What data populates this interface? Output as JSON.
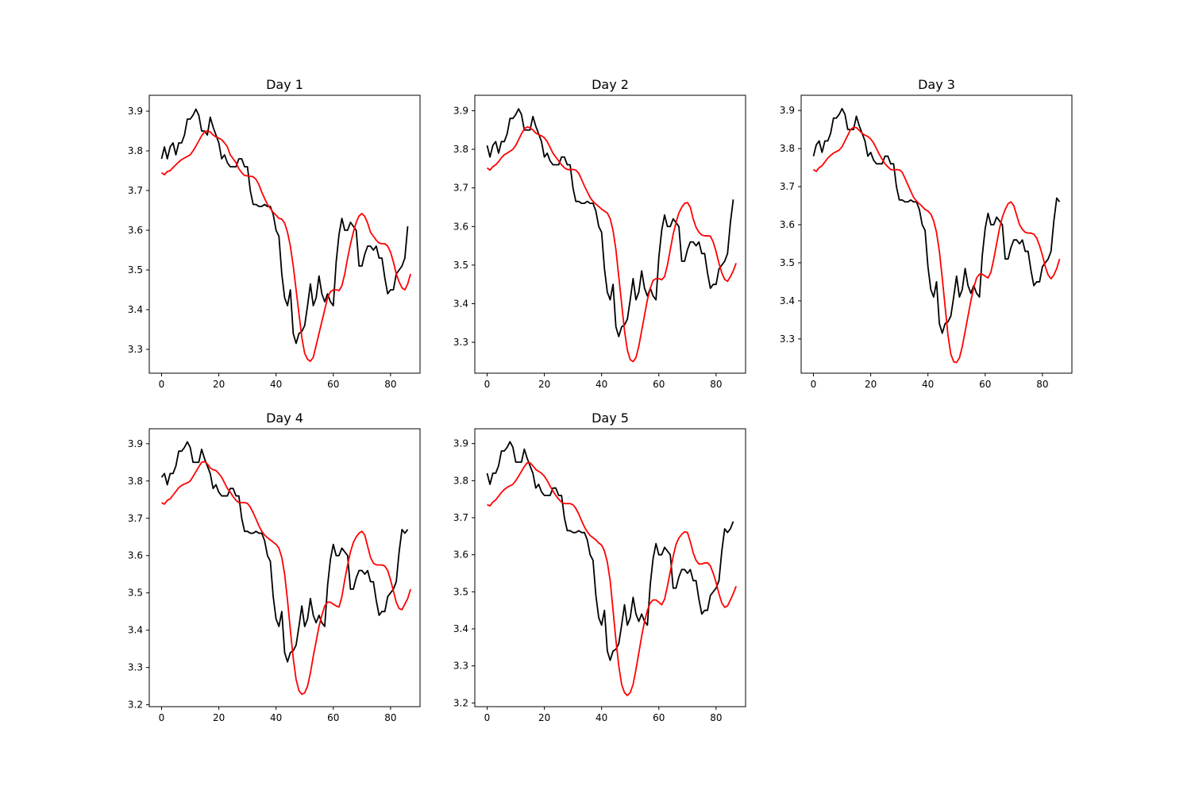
{
  "chart_data": [
    {
      "type": "line",
      "title": "Day 1",
      "xticks": [
        0,
        20,
        40,
        60,
        80
      ],
      "yticks": [
        3.3,
        3.4,
        3.5,
        3.6,
        3.7,
        3.8,
        3.9
      ],
      "xlim": [
        -4.3,
        90.3
      ],
      "ylim": [
        3.24,
        3.94
      ],
      "series": [
        {
          "color": "#000000",
          "values": [
            3.78,
            3.81,
            3.78,
            3.81,
            3.82,
            3.79,
            3.82,
            3.82,
            3.84,
            3.88,
            3.88,
            3.89,
            3.905,
            3.89,
            3.85,
            3.85,
            3.84,
            3.885,
            3.86,
            3.84,
            3.82,
            3.78,
            3.79,
            3.77,
            3.76,
            3.76,
            3.76,
            3.78,
            3.78,
            3.76,
            3.76,
            3.7,
            3.665,
            3.665,
            3.66,
            3.66,
            3.665,
            3.66,
            3.66,
            3.64,
            3.6,
            3.585,
            3.49,
            3.43,
            3.41,
            3.45,
            3.34,
            3.315,
            3.34,
            3.345,
            3.36,
            3.41,
            3.465,
            3.41,
            3.43,
            3.485,
            3.44,
            3.42,
            3.44,
            3.42,
            3.41,
            3.52,
            3.59,
            3.63,
            3.6,
            3.6,
            3.62,
            3.61,
            3.6,
            3.51,
            3.51,
            3.54,
            3.56,
            3.56,
            3.55,
            3.56,
            3.53,
            3.53,
            3.48,
            3.44,
            3.45,
            3.45,
            3.49,
            3.5,
            3.51,
            3.53,
            3.61
          ]
        },
        {
          "color": "#ff0000",
          "values": [
            3.745,
            3.74,
            3.748,
            3.75,
            3.758,
            3.765,
            3.772,
            3.778,
            3.782,
            3.786,
            3.79,
            3.8,
            3.812,
            3.825,
            3.838,
            3.848,
            3.85,
            3.848,
            3.84,
            3.835,
            3.832,
            3.828,
            3.82,
            3.81,
            3.79,
            3.78,
            3.77,
            3.755,
            3.745,
            3.738,
            3.737,
            3.736,
            3.735,
            3.728,
            3.715,
            3.696,
            3.68,
            3.665,
            3.655,
            3.645,
            3.638,
            3.63,
            3.628,
            3.618,
            3.595,
            3.56,
            3.51,
            3.45,
            3.39,
            3.33,
            3.29,
            3.275,
            3.27,
            3.28,
            3.31,
            3.34,
            3.37,
            3.4,
            3.43,
            3.445,
            3.45,
            3.45,
            3.448,
            3.46,
            3.49,
            3.53,
            3.565,
            3.595,
            3.62,
            3.636,
            3.642,
            3.635,
            3.618,
            3.595,
            3.585,
            3.575,
            3.568,
            3.566,
            3.566,
            3.56,
            3.545,
            3.52,
            3.49,
            3.47,
            3.455,
            3.45,
            3.465,
            3.49
          ]
        }
      ]
    },
    {
      "type": "line",
      "title": "Day 2",
      "xticks": [
        0,
        20,
        40,
        60,
        80
      ],
      "yticks": [
        3.3,
        3.4,
        3.5,
        3.6,
        3.7,
        3.8,
        3.9
      ],
      "xlim": [
        -4.3,
        90.3
      ],
      "ylim": [
        3.22,
        3.94
      ],
      "series": [
        {
          "color": "#000000",
          "values": [
            3.81,
            3.78,
            3.81,
            3.82,
            3.79,
            3.82,
            3.82,
            3.84,
            3.88,
            3.88,
            3.89,
            3.905,
            3.89,
            3.85,
            3.85,
            3.85,
            3.885,
            3.86,
            3.84,
            3.82,
            3.78,
            3.79,
            3.77,
            3.76,
            3.76,
            3.76,
            3.78,
            3.78,
            3.76,
            3.76,
            3.7,
            3.665,
            3.665,
            3.66,
            3.66,
            3.665,
            3.66,
            3.66,
            3.64,
            3.6,
            3.585,
            3.49,
            3.43,
            3.41,
            3.45,
            3.34,
            3.315,
            3.34,
            3.345,
            3.36,
            3.41,
            3.465,
            3.41,
            3.43,
            3.485,
            3.44,
            3.42,
            3.44,
            3.42,
            3.41,
            3.52,
            3.59,
            3.63,
            3.6,
            3.6,
            3.62,
            3.61,
            3.6,
            3.51,
            3.51,
            3.54,
            3.56,
            3.56,
            3.55,
            3.56,
            3.53,
            3.53,
            3.48,
            3.44,
            3.45,
            3.45,
            3.49,
            3.5,
            3.51,
            3.53,
            3.61,
            3.67
          ]
        },
        {
          "color": "#ff0000",
          "values": [
            3.752,
            3.746,
            3.755,
            3.76,
            3.768,
            3.778,
            3.786,
            3.79,
            3.795,
            3.8,
            3.81,
            3.825,
            3.84,
            3.853,
            3.858,
            3.856,
            3.85,
            3.842,
            3.838,
            3.835,
            3.83,
            3.82,
            3.805,
            3.79,
            3.78,
            3.77,
            3.76,
            3.752,
            3.748,
            3.747,
            3.748,
            3.746,
            3.738,
            3.722,
            3.705,
            3.69,
            3.675,
            3.665,
            3.658,
            3.652,
            3.645,
            3.64,
            3.635,
            3.62,
            3.59,
            3.54,
            3.47,
            3.4,
            3.33,
            3.28,
            3.255,
            3.25,
            3.26,
            3.29,
            3.33,
            3.37,
            3.41,
            3.44,
            3.46,
            3.465,
            3.465,
            3.462,
            3.47,
            3.5,
            3.54,
            3.58,
            3.61,
            3.635,
            3.65,
            3.66,
            3.662,
            3.65,
            3.62,
            3.598,
            3.585,
            3.578,
            3.576,
            3.576,
            3.575,
            3.56,
            3.535,
            3.505,
            3.48,
            3.463,
            3.458,
            3.47,
            3.485,
            3.505
          ]
        }
      ]
    },
    {
      "type": "line",
      "title": "Day 3",
      "xticks": [
        0,
        20,
        40,
        60,
        80
      ],
      "yticks": [
        3.3,
        3.4,
        3.5,
        3.6,
        3.7,
        3.8,
        3.9
      ],
      "xlim": [
        -4.3,
        90.3
      ],
      "ylim": [
        3.21,
        3.94
      ],
      "series": [
        {
          "color": "#000000",
          "values": [
            3.78,
            3.81,
            3.82,
            3.79,
            3.82,
            3.82,
            3.84,
            3.88,
            3.88,
            3.89,
            3.905,
            3.89,
            3.85,
            3.85,
            3.85,
            3.885,
            3.86,
            3.84,
            3.82,
            3.78,
            3.79,
            3.77,
            3.76,
            3.76,
            3.76,
            3.78,
            3.78,
            3.76,
            3.76,
            3.7,
            3.665,
            3.665,
            3.66,
            3.66,
            3.665,
            3.66,
            3.66,
            3.64,
            3.6,
            3.585,
            3.49,
            3.43,
            3.41,
            3.45,
            3.34,
            3.315,
            3.34,
            3.345,
            3.36,
            3.41,
            3.465,
            3.41,
            3.43,
            3.485,
            3.44,
            3.42,
            3.44,
            3.42,
            3.41,
            3.52,
            3.59,
            3.63,
            3.6,
            3.6,
            3.62,
            3.61,
            3.6,
            3.51,
            3.51,
            3.54,
            3.56,
            3.56,
            3.55,
            3.56,
            3.53,
            3.53,
            3.48,
            3.44,
            3.45,
            3.45,
            3.49,
            3.5,
            3.51,
            3.53,
            3.61,
            3.67,
            3.66
          ]
        },
        {
          "color": "#ff0000",
          "values": [
            3.745,
            3.74,
            3.75,
            3.755,
            3.765,
            3.775,
            3.782,
            3.788,
            3.792,
            3.796,
            3.805,
            3.82,
            3.835,
            3.85,
            3.856,
            3.855,
            3.848,
            3.84,
            3.835,
            3.832,
            3.825,
            3.815,
            3.8,
            3.785,
            3.772,
            3.76,
            3.752,
            3.745,
            3.744,
            3.745,
            3.744,
            3.738,
            3.722,
            3.705,
            3.688,
            3.672,
            3.662,
            3.655,
            3.648,
            3.64,
            3.636,
            3.628,
            3.61,
            3.58,
            3.53,
            3.46,
            3.385,
            3.31,
            3.26,
            3.24,
            3.238,
            3.25,
            3.28,
            3.32,
            3.36,
            3.4,
            3.435,
            3.46,
            3.47,
            3.47,
            3.465,
            3.46,
            3.475,
            3.51,
            3.55,
            3.59,
            3.62,
            3.64,
            3.655,
            3.66,
            3.65,
            3.625,
            3.6,
            3.588,
            3.58,
            3.578,
            3.578,
            3.575,
            3.565,
            3.545,
            3.52,
            3.49,
            3.468,
            3.458,
            3.468,
            3.485,
            3.51
          ]
        }
      ]
    },
    {
      "type": "line",
      "title": "Day 4",
      "xticks": [
        0,
        20,
        40,
        60,
        80
      ],
      "yticks": [
        3.2,
        3.3,
        3.4,
        3.5,
        3.6,
        3.7,
        3.8,
        3.9
      ],
      "xlim": [
        -4.3,
        90.3
      ],
      "ylim": [
        3.195,
        3.94
      ],
      "series": [
        {
          "color": "#000000",
          "values": [
            3.81,
            3.82,
            3.79,
            3.82,
            3.82,
            3.84,
            3.88,
            3.88,
            3.89,
            3.905,
            3.89,
            3.85,
            3.85,
            3.85,
            3.885,
            3.86,
            3.84,
            3.82,
            3.78,
            3.79,
            3.77,
            3.76,
            3.76,
            3.76,
            3.78,
            3.78,
            3.76,
            3.76,
            3.7,
            3.665,
            3.665,
            3.66,
            3.66,
            3.665,
            3.66,
            3.66,
            3.64,
            3.6,
            3.585,
            3.49,
            3.43,
            3.41,
            3.45,
            3.34,
            3.315,
            3.34,
            3.345,
            3.36,
            3.41,
            3.465,
            3.41,
            3.43,
            3.485,
            3.44,
            3.42,
            3.44,
            3.42,
            3.41,
            3.52,
            3.59,
            3.63,
            3.6,
            3.6,
            3.62,
            3.61,
            3.6,
            3.51,
            3.51,
            3.54,
            3.56,
            3.56,
            3.55,
            3.56,
            3.53,
            3.53,
            3.48,
            3.44,
            3.45,
            3.45,
            3.49,
            3.5,
            3.51,
            3.53,
            3.61,
            3.67,
            3.66,
            3.67
          ]
        },
        {
          "color": "#ff0000",
          "values": [
            3.742,
            3.738,
            3.748,
            3.752,
            3.762,
            3.772,
            3.782,
            3.788,
            3.792,
            3.795,
            3.8,
            3.812,
            3.825,
            3.838,
            3.85,
            3.852,
            3.846,
            3.835,
            3.83,
            3.828,
            3.82,
            3.81,
            3.795,
            3.78,
            3.77,
            3.758,
            3.748,
            3.742,
            3.742,
            3.742,
            3.74,
            3.73,
            3.715,
            3.698,
            3.68,
            3.665,
            3.655,
            3.648,
            3.642,
            3.636,
            3.63,
            3.62,
            3.595,
            3.55,
            3.48,
            3.4,
            3.325,
            3.268,
            3.238,
            3.228,
            3.232,
            3.25,
            3.285,
            3.33,
            3.37,
            3.41,
            3.44,
            3.465,
            3.475,
            3.475,
            3.47,
            3.465,
            3.462,
            3.49,
            3.535,
            3.575,
            3.61,
            3.635,
            3.65,
            3.66,
            3.665,
            3.655,
            3.625,
            3.595,
            3.58,
            3.575,
            3.575,
            3.575,
            3.572,
            3.56,
            3.535,
            3.505,
            3.475,
            3.458,
            3.455,
            3.47,
            3.485,
            3.51
          ]
        }
      ]
    },
    {
      "type": "line",
      "title": "Day 5",
      "xticks": [
        0,
        20,
        40,
        60,
        80
      ],
      "yticks": [
        3.2,
        3.3,
        3.4,
        3.5,
        3.6,
        3.7,
        3.8,
        3.9
      ],
      "xlim": [
        -4.3,
        90.3
      ],
      "ylim": [
        3.19,
        3.94
      ],
      "series": [
        {
          "color": "#000000",
          "values": [
            3.82,
            3.79,
            3.82,
            3.82,
            3.84,
            3.88,
            3.88,
            3.89,
            3.905,
            3.89,
            3.85,
            3.85,
            3.85,
            3.885,
            3.86,
            3.84,
            3.82,
            3.78,
            3.79,
            3.77,
            3.76,
            3.76,
            3.76,
            3.78,
            3.78,
            3.76,
            3.76,
            3.7,
            3.665,
            3.665,
            3.66,
            3.66,
            3.665,
            3.66,
            3.66,
            3.64,
            3.6,
            3.585,
            3.49,
            3.43,
            3.41,
            3.45,
            3.34,
            3.315,
            3.34,
            3.345,
            3.36,
            3.41,
            3.465,
            3.41,
            3.43,
            3.485,
            3.44,
            3.42,
            3.44,
            3.42,
            3.41,
            3.52,
            3.59,
            3.63,
            3.6,
            3.6,
            3.62,
            3.61,
            3.6,
            3.51,
            3.51,
            3.54,
            3.56,
            3.56,
            3.55,
            3.56,
            3.53,
            3.53,
            3.48,
            3.44,
            3.45,
            3.45,
            3.49,
            3.5,
            3.51,
            3.53,
            3.61,
            3.67,
            3.66,
            3.67,
            3.69
          ]
        },
        {
          "color": "#ff0000",
          "values": [
            3.735,
            3.732,
            3.742,
            3.748,
            3.758,
            3.768,
            3.776,
            3.782,
            3.786,
            3.79,
            3.8,
            3.812,
            3.825,
            3.838,
            3.848,
            3.848,
            3.84,
            3.83,
            3.825,
            3.82,
            3.812,
            3.8,
            3.785,
            3.772,
            3.76,
            3.75,
            3.742,
            3.738,
            3.738,
            3.738,
            3.735,
            3.725,
            3.71,
            3.692,
            3.675,
            3.662,
            3.652,
            3.646,
            3.64,
            3.632,
            3.626,
            3.61,
            3.58,
            3.53,
            3.45,
            3.37,
            3.3,
            3.25,
            3.228,
            3.22,
            3.228,
            3.25,
            3.29,
            3.335,
            3.38,
            3.42,
            3.45,
            3.47,
            3.478,
            3.478,
            3.472,
            3.465,
            3.48,
            3.515,
            3.555,
            3.595,
            3.628,
            3.645,
            3.655,
            3.662,
            3.66,
            3.635,
            3.605,
            3.585,
            3.575,
            3.575,
            3.578,
            3.578,
            3.57,
            3.55,
            3.525,
            3.495,
            3.47,
            3.458,
            3.462,
            3.478,
            3.495,
            3.515
          ]
        }
      ]
    }
  ]
}
